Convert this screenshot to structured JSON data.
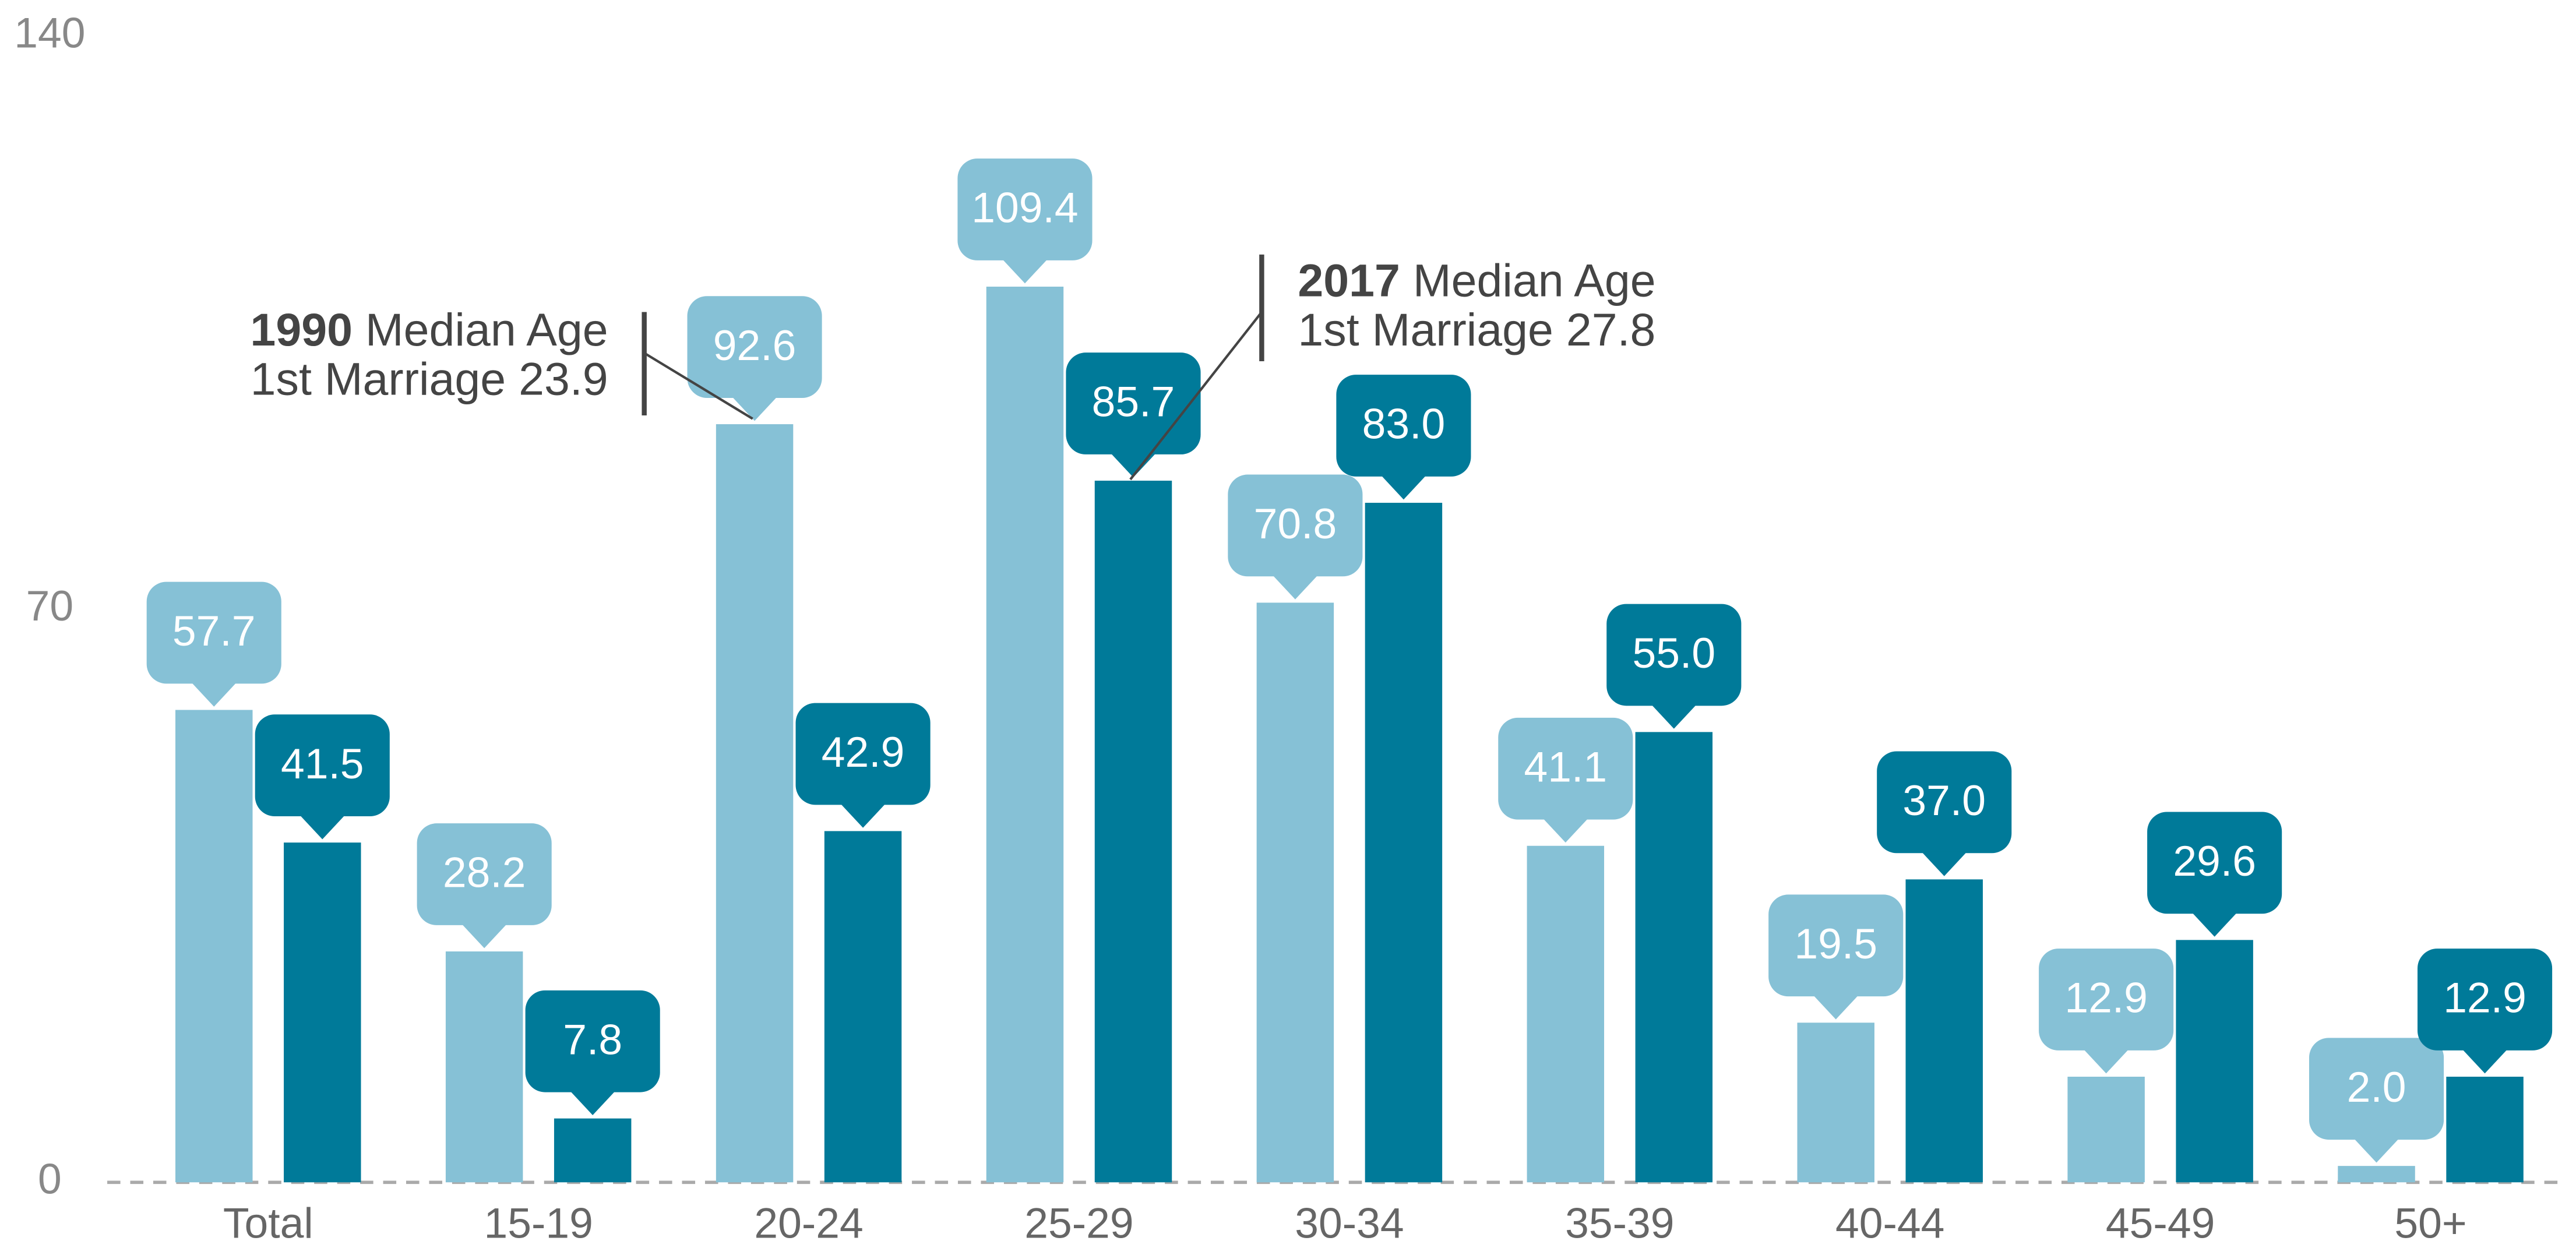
{
  "chart_data": {
    "type": "bar",
    "categories": [
      "Total",
      "15-19",
      "20-24",
      "25-29",
      "30-34",
      "35-39",
      "40-44",
      "45-49",
      "50+"
    ],
    "series": [
      {
        "name": "1990",
        "color": "#86c1d6",
        "values": [
          57.7,
          28.2,
          92.6,
          109.4,
          70.8,
          41.1,
          19.5,
          12.9,
          2.0
        ],
        "value_labels": [
          "57.7",
          "28.2",
          "92.6",
          "109.4",
          "70.8",
          "41.1",
          "19.5",
          "12.9",
          "2.0"
        ]
      },
      {
        "name": "2017",
        "color": "#007a99",
        "values": [
          41.5,
          7.8,
          42.9,
          85.7,
          83.0,
          55.0,
          37.0,
          29.6,
          12.9
        ],
        "value_labels": [
          "41.5",
          "7.8",
          "42.9",
          "85.7",
          "83.0",
          "55.0",
          "37.0",
          "29.6",
          "12.9"
        ]
      }
    ],
    "ylim": [
      0,
      140
    ],
    "yticks": [
      0,
      70,
      140
    ],
    "grid": false,
    "annotations": [
      {
        "bold": "1990",
        "text": " Median Age",
        "line2": "1st Marriage 23.9"
      },
      {
        "bold": "2017",
        "text": " Median Age",
        "line2": "1st Marriage 27.8"
      }
    ]
  }
}
